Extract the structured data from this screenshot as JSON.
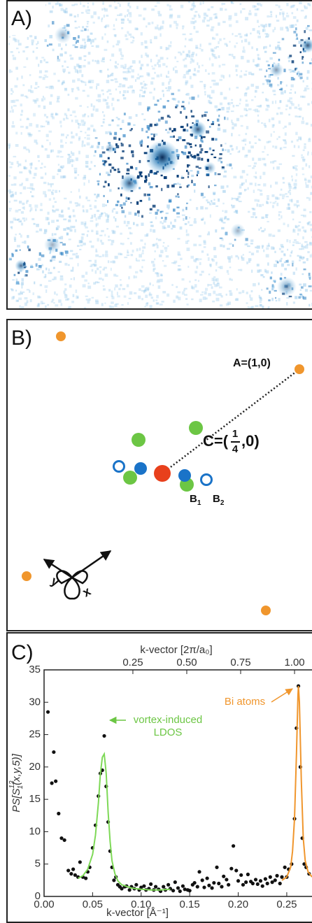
{
  "panel_a": {
    "label": "A)"
  },
  "panel_b": {
    "label": "B)",
    "a_label": "A=(1,0)",
    "c_label": {
      "prefix": "C=(",
      "numerator": "1",
      "denominator": "4",
      "suffix": ",0)"
    },
    "b1": {
      "letter": "B",
      "sub": "1"
    },
    "b2": {
      "letter": "B",
      "sub": "2"
    },
    "axis_x": "x",
    "axis_y": "y"
  },
  "chart_data": {
    "type": "scatter",
    "panel_label": "C)",
    "xlabel": "k-vector [Å⁻¹]",
    "x2label": "k-vector [2π/a₀]",
    "ylabel": {
      "prefix": "PS[S",
      "sup": "12",
      "sub": "1",
      "suffix": "(x,y,5)]"
    },
    "xlim": [
      0,
      0.276
    ],
    "xticks": [
      {
        "value": 0,
        "label": "0.00"
      },
      0.05,
      {
        "value": 0.1,
        "label": "0.10"
      },
      0.15,
      {
        "value": 0.2,
        "label": "0.20"
      },
      0.25
    ],
    "x2lim": [
      -0.162,
      1.081
    ],
    "x2ticks": [
      0.25,
      {
        "value": 0.5,
        "label": "0.50"
      },
      0.75,
      {
        "value": 1,
        "label": "1.00"
      }
    ],
    "ylim": [
      0,
      35
    ],
    "yticks": [
      0,
      5,
      10,
      15,
      20,
      25,
      30,
      35
    ],
    "series": [
      {
        "color": "#111111",
        "style": "points",
        "x": [
          0.004,
          0.008,
          0.01,
          0.012,
          0.015,
          0.018,
          0.021,
          0.025,
          0.028,
          0.03,
          0.032,
          0.035,
          0.037,
          0.04,
          0.043,
          0.045,
          0.047,
          0.05,
          0.053,
          0.056,
          0.058,
          0.06,
          0.062,
          0.064,
          0.066,
          0.068,
          0.07,
          0.072,
          0.074,
          0.076,
          0.078,
          0.08,
          0.083,
          0.085,
          0.088,
          0.09,
          0.093,
          0.095,
          0.098,
          0.1,
          0.103,
          0.105,
          0.108,
          0.11,
          0.113,
          0.115,
          0.118,
          0.12,
          0.123,
          0.125,
          0.128,
          0.13,
          0.133,
          0.135,
          0.138,
          0.14,
          0.143,
          0.145,
          0.148,
          0.15,
          0.153,
          0.155,
          0.158,
          0.16,
          0.163,
          0.165,
          0.168,
          0.17,
          0.173,
          0.175,
          0.178,
          0.18,
          0.183,
          0.185,
          0.188,
          0.19,
          0.193,
          0.195,
          0.198,
          0.2,
          0.203,
          0.205,
          0.208,
          0.21,
          0.213,
          0.215,
          0.218,
          0.22,
          0.223,
          0.225,
          0.228,
          0.23,
          0.233,
          0.235,
          0.238,
          0.24,
          0.243,
          0.245,
          0.248,
          0.25,
          0.252,
          0.255,
          0.258,
          0.26,
          0.262,
          0.264,
          0.266,
          0.268,
          0.27,
          0.273
        ],
        "values": [
          28.5,
          17.5,
          22.3,
          17.8,
          12.8,
          9.0,
          8.7,
          4.0,
          3.5,
          4.2,
          3.3,
          3.0,
          5.3,
          3.0,
          2.8,
          3.8,
          4.5,
          7.5,
          11.0,
          15.5,
          19.0,
          19.5,
          24.8,
          17.0,
          11.5,
          7.0,
          4.5,
          2.5,
          3.0,
          1.8,
          1.5,
          1.2,
          1.5,
          1.6,
          1.0,
          1.5,
          1.2,
          1.8,
          1.0,
          1.4,
          1.6,
          1.0,
          1.2,
          1.9,
          1.0,
          1.5,
          1.1,
          0.8,
          1.5,
          1.0,
          1.8,
          1.2,
          0.9,
          2.2,
          1.3,
          0.8,
          1.6,
          1.1,
          1.0,
          0.9,
          1.8,
          2.1,
          1.5,
          3.8,
          2.5,
          1.4,
          2.8,
          1.7,
          1.3,
          2.1,
          4.5,
          2.0,
          1.5,
          3.1,
          2.6,
          1.8,
          4.3,
          7.8,
          4.0,
          2.4,
          3.3,
          1.8,
          2.2,
          3.4,
          2.3,
          2.0,
          2.6,
          1.9,
          2.4,
          1.6,
          2.7,
          2.0,
          3.0,
          2.2,
          2.5,
          3.2,
          2.0,
          3.0,
          4.5,
          3.0,
          4.2,
          5.0,
          12,
          26,
          32.5,
          20,
          9,
          5,
          4.5,
          3.5
        ]
      },
      {
        "color": "#7ed957",
        "style": "line",
        "x": [
          0.035,
          0.04,
          0.045,
          0.05,
          0.053,
          0.056,
          0.058,
          0.06,
          0.062,
          0.064,
          0.066,
          0.068,
          0.07,
          0.073,
          0.076,
          0.08,
          0.09,
          0.1,
          0.11,
          0.12,
          0.13
        ],
        "values": [
          2.8,
          3.2,
          4.2,
          6.5,
          9.5,
          14.5,
          19,
          21.5,
          22,
          19,
          13,
          8.5,
          5.5,
          3.5,
          2.4,
          1.8,
          1.3,
          1.1,
          1.0,
          1.0,
          1.1
        ]
      },
      {
        "color": "#f0962d",
        "style": "line",
        "x": [
          0.245,
          0.25,
          0.254,
          0.256,
          0.258,
          0.26,
          0.2615,
          0.262,
          0.263,
          0.265,
          0.267,
          0.269,
          0.272,
          0.276
        ],
        "values": [
          2.5,
          3.0,
          4.5,
          7,
          12,
          22,
          31,
          32.5,
          30,
          18,
          9,
          5.5,
          3.8,
          3.0
        ]
      }
    ],
    "annotations": [
      {
        "lines": [
          "vortex-induced",
          "LDOS"
        ],
        "color": "#6cc644"
      },
      {
        "lines": [
          "Bi atoms"
        ],
        "color": "#f0962d"
      }
    ]
  }
}
